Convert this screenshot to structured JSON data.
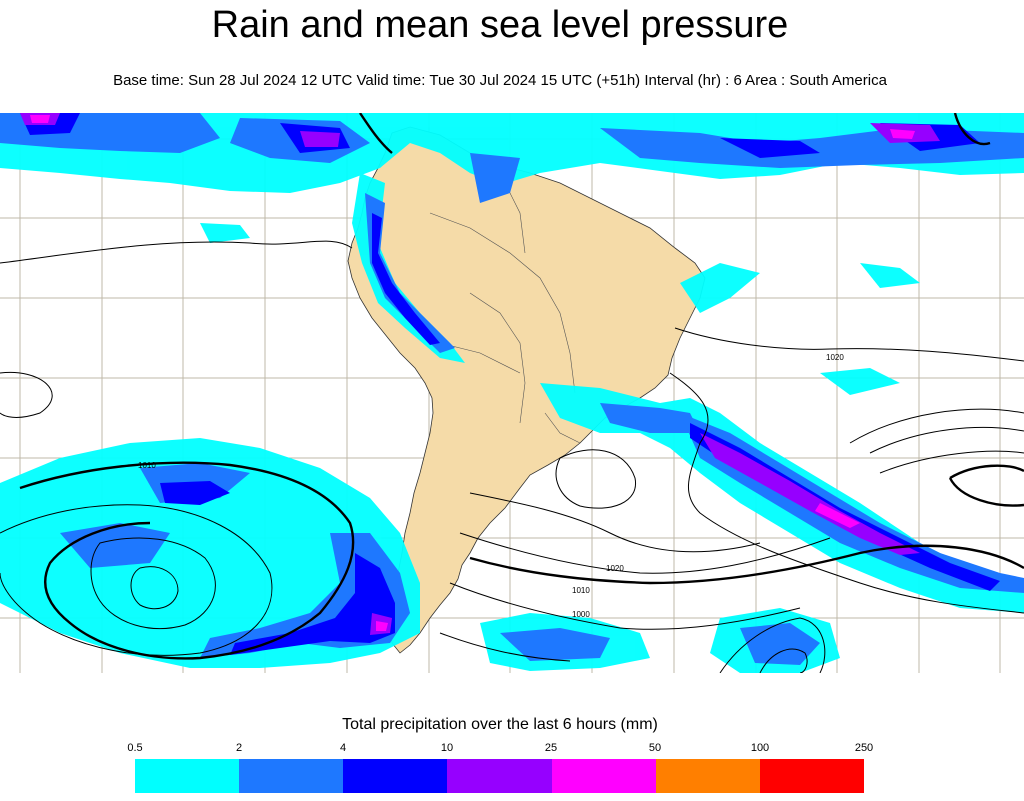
{
  "title": "Rain and mean sea level pressure",
  "subtitle": "Base time: Sun 28 Jul 2024 12 UTC Valid time: Tue 30 Jul 2024 15 UTC (+51h) Interval (hr) : 6 Area : South America",
  "map": {
    "area": "South America",
    "isobar_labels": [
      "1020",
      "1010",
      "1020",
      "1010",
      "1000"
    ],
    "colors": {
      "land": "#f5dba8",
      "ocean": "#ffffff",
      "isobar": "#000000",
      "gridline": "#bfb8a8"
    }
  },
  "legend": {
    "title": "Total precipitation over the last 6 hours (mm)",
    "ticks": [
      "0.5",
      "2",
      "4",
      "10",
      "25",
      "50",
      "100",
      "250"
    ],
    "colors": [
      "#00ffff",
      "#1e78ff",
      "#0000ff",
      "#9600ff",
      "#ff00ff",
      "#ff7f00",
      "#ff0000"
    ]
  }
}
